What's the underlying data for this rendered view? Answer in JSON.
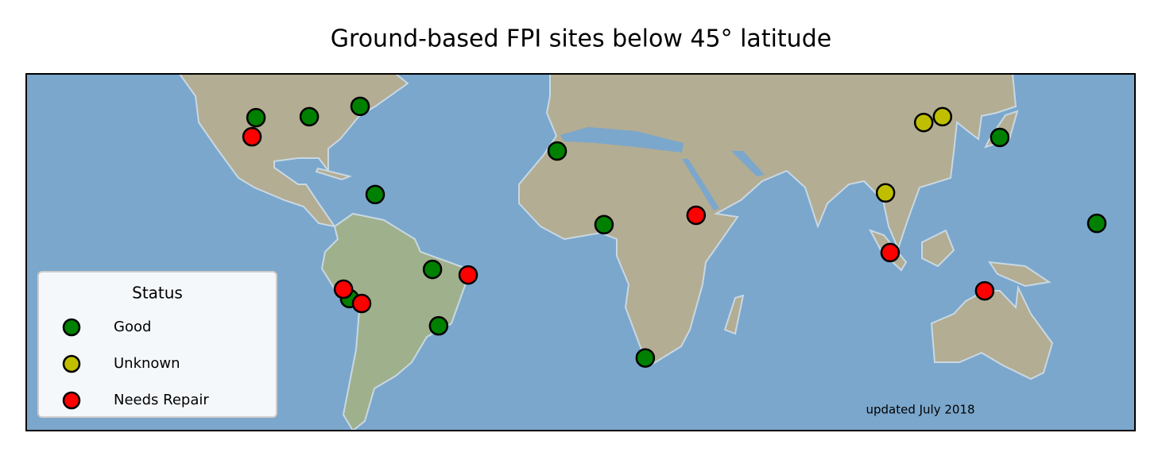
{
  "chart_data": {
    "type": "scatter",
    "title": "Ground-based FPI sites below 45° latitude",
    "xlim": [
      -180,
      180
    ],
    "ylim": [
      -55,
      55
    ],
    "legend_title": "Status",
    "legend": "lower left",
    "annotation": "updated July 2018",
    "series": [
      {
        "name": "Good",
        "color": "#008000",
        "x": [
          -105.4,
          -88.1,
          -71.6,
          -66.7,
          -7.6,
          7.6,
          -48.1,
          -75.0,
          -46.1,
          21.0,
          136.1,
          167.6
        ],
        "values": [
          41.5,
          41.8,
          45.0,
          17.8,
          31.2,
          8.5,
          -5.3,
          -14.3,
          -22.7,
          -32.6,
          35.4,
          8.9
        ]
      },
      {
        "name": "Unknown",
        "color": "#bfbf00",
        "x": [
          111.4,
          117.5,
          99.0
        ],
        "values": [
          40.0,
          41.8,
          18.3
        ]
      },
      {
        "name": "Needs Repair",
        "color": "#ff0000",
        "x": [
          -106.7,
          37.5,
          -36.5,
          -77.0,
          -71.1,
          100.5,
          131.2
        ],
        "values": [
          35.6,
          11.4,
          -7.0,
          -11.4,
          -15.8,
          -0.1,
          -11.9
        ]
      }
    ]
  }
}
